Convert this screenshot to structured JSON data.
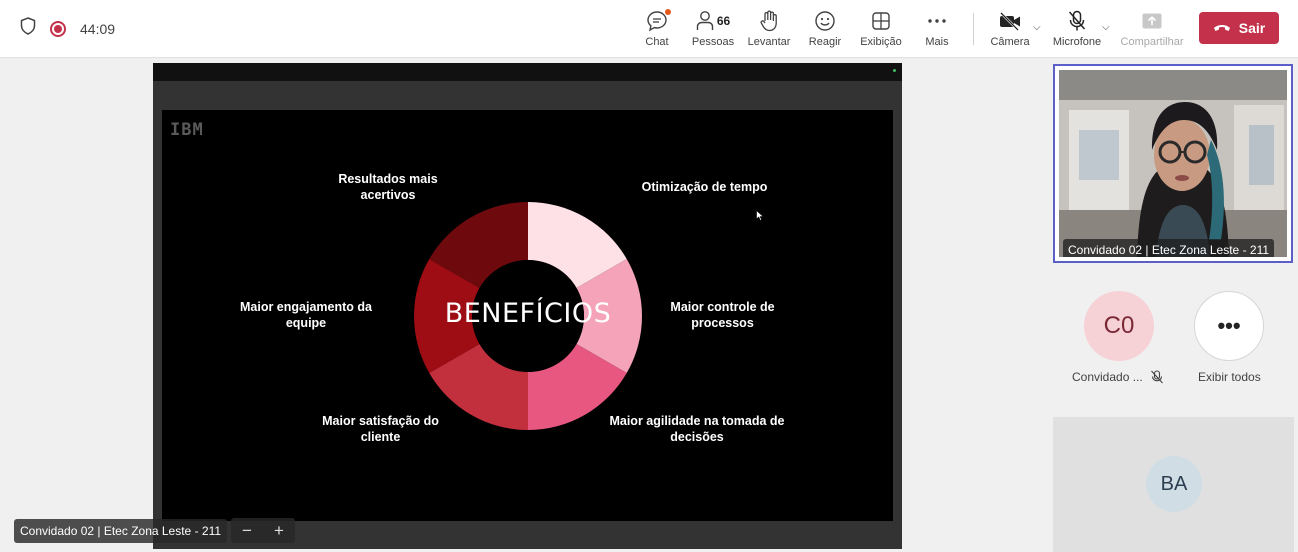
{
  "header": {
    "timer": "44:09",
    "tools": [
      {
        "label": "Chat",
        "icon": "chat-icon"
      },
      {
        "label": "Pessoas",
        "icon": "people-icon",
        "count": "66"
      },
      {
        "label": "Levantar",
        "icon": "raise-hand-icon"
      },
      {
        "label": "Reagir",
        "icon": "react-icon"
      },
      {
        "label": "Exibição",
        "icon": "view-grid-icon"
      },
      {
        "label": "Mais",
        "icon": "more-icon"
      },
      {
        "label": "Câmera",
        "icon": "camera-off-icon"
      },
      {
        "label": "Microfone",
        "icon": "mic-off-icon"
      },
      {
        "label": "Compartilhar",
        "icon": "share-icon"
      }
    ],
    "leave_label": "Sair",
    "leave_color": "#c4314b"
  },
  "slide": {
    "logo": "IBM",
    "title": "BENEFÍCIOS",
    "labels": [
      "Resultados mais acertivos",
      "Otimização de tempo",
      "Maior engajamento da equipe",
      "Maior controle de processos",
      "Maior satisfação do cliente",
      "Maior agilidade na tomada de decisões"
    ],
    "segment_colors": [
      "#fde1e6",
      "#f4a3b8",
      "#e8577f",
      "#c2303d",
      "#9e0c14",
      "#6e0a0e"
    ]
  },
  "presenter_tag": "Convidado 02 | Etec Zona Leste - 211",
  "right_panel": {
    "video_name": "Convidado 02 | Etec Zona Leste - 211",
    "avatar_initials": "C0",
    "avatar_caption": "Convidado ...",
    "more_caption": "Exibir todos",
    "tile_initials": "BA"
  }
}
